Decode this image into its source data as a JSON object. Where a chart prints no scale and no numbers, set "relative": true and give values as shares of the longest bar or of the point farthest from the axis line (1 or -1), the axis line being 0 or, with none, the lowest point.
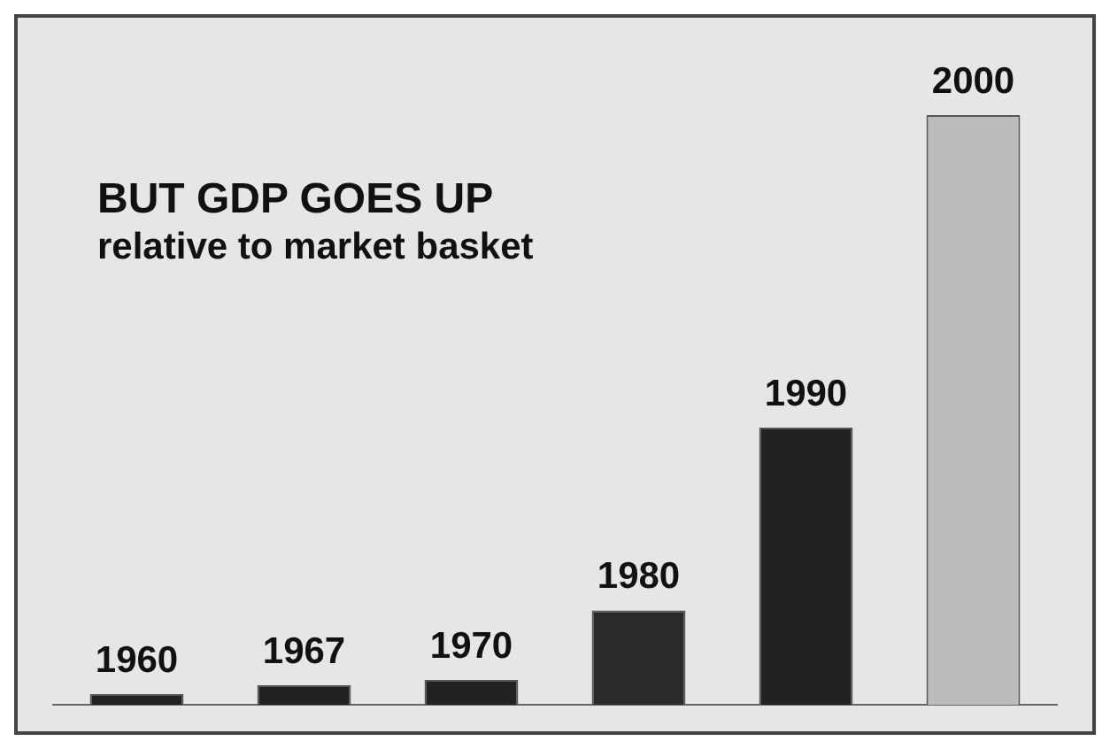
{
  "chart_data": {
    "type": "bar",
    "title": "BUT GDP GOES UP",
    "subtitle": "relative to market basket",
    "categories": [
      "1960",
      "1967",
      "1970",
      "1980",
      "1990",
      "2000"
    ],
    "values": [
      0.018,
      0.033,
      0.042,
      0.16,
      0.47,
      1
    ],
    "colors": [
      "#222222",
      "#222222",
      "#222222",
      "#2a2a2a",
      "#222222",
      "#bcbcbc"
    ],
    "relative": true,
    "legend": false
  }
}
